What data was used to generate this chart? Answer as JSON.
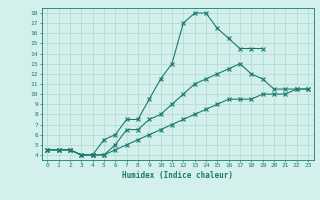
{
  "line1_x": [
    0,
    1,
    2,
    3,
    4,
    5,
    6,
    7,
    8,
    9,
    10,
    11,
    12,
    13,
    14,
    15,
    16,
    17,
    18,
    19
  ],
  "line1_y": [
    4.5,
    4.5,
    4.5,
    4.0,
    4.0,
    5.5,
    6.0,
    7.5,
    7.5,
    9.5,
    11.5,
    13.0,
    17.0,
    18.0,
    18.0,
    16.5,
    15.5,
    14.5,
    14.5,
    14.5
  ],
  "line2_x": [
    0,
    1,
    2,
    3,
    4,
    5,
    6,
    7,
    8,
    9,
    10,
    11,
    12,
    13,
    14,
    15,
    16,
    17,
    18,
    19,
    20,
    21,
    22,
    23
  ],
  "line2_y": [
    4.5,
    4.5,
    4.5,
    4.0,
    4.0,
    4.0,
    5.0,
    6.5,
    6.5,
    7.5,
    8.0,
    9.0,
    10.0,
    11.0,
    11.5,
    12.0,
    12.5,
    13.0,
    12.0,
    11.5,
    10.5,
    10.5,
    10.5,
    10.5
  ],
  "line3_x": [
    0,
    1,
    2,
    3,
    4,
    5,
    6,
    7,
    8,
    9,
    10,
    11,
    12,
    13,
    14,
    15,
    16,
    17,
    18,
    19,
    20,
    21,
    22,
    23
  ],
  "line3_y": [
    4.5,
    4.5,
    4.5,
    4.0,
    4.0,
    4.0,
    4.5,
    5.0,
    5.5,
    6.0,
    6.5,
    7.0,
    7.5,
    8.0,
    8.5,
    9.0,
    9.5,
    9.5,
    9.5,
    10.0,
    10.0,
    10.0,
    10.5,
    10.5
  ],
  "line_color": "#1a7a6e",
  "bg_color": "#d4f0ec",
  "grid_color": "#b0d8d0",
  "xlabel": "Humidex (Indice chaleur)",
  "xlim": [
    -0.5,
    23.5
  ],
  "ylim": [
    3.5,
    18.5
  ],
  "xticks": [
    0,
    1,
    2,
    3,
    4,
    5,
    6,
    7,
    8,
    9,
    10,
    11,
    12,
    13,
    14,
    15,
    16,
    17,
    18,
    19,
    20,
    21,
    22,
    23
  ],
  "yticks": [
    4,
    5,
    6,
    7,
    8,
    9,
    10,
    11,
    12,
    13,
    14,
    15,
    16,
    17,
    18
  ]
}
